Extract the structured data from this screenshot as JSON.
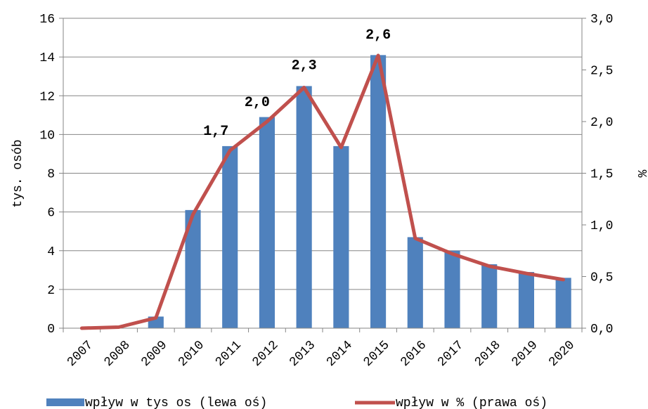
{
  "chart_data": {
    "type": "bar",
    "categories": [
      "2007",
      "2008",
      "2009",
      "2010",
      "2011",
      "2012",
      "2013",
      "2014",
      "2015",
      "2016",
      "2017",
      "2018",
      "2019",
      "2020"
    ],
    "series": [
      {
        "name": "wpływ w tys os (lewa oś)",
        "type": "bar",
        "axis": "left",
        "color": "#4f81bd",
        "values": [
          0,
          0,
          0.6,
          6.1,
          9.4,
          10.9,
          12.5,
          9.4,
          14.1,
          4.7,
          4.0,
          3.3,
          2.9,
          2.6
        ]
      },
      {
        "name": "wpływ w % (prawa oś)",
        "type": "line",
        "axis": "right",
        "color": "#c0504d",
        "values": [
          0.0,
          0.01,
          0.1,
          1.1,
          1.72,
          2.0,
          2.33,
          1.75,
          2.64,
          0.87,
          0.72,
          0.6,
          0.53,
          0.47
        ]
      }
    ],
    "data_labels": [
      {
        "category": "2011",
        "text": "1,7"
      },
      {
        "category": "2012",
        "text": "2,0"
      },
      {
        "category": "2013",
        "text": "2,3"
      },
      {
        "category": "2015",
        "text": "2,6"
      }
    ],
    "ylabel": "tys. osób",
    "y2label": "%",
    "ylim": [
      0,
      16
    ],
    "y2lim": [
      0,
      3
    ],
    "yticks": [
      "0",
      "2",
      "4",
      "6",
      "8",
      "10",
      "12",
      "14",
      "16"
    ],
    "y2ticks": [
      "0,0",
      "0,5",
      "1,0",
      "1,5",
      "2,0",
      "2,5",
      "3,0"
    ],
    "grid": true,
    "legend_position": "bottom"
  }
}
